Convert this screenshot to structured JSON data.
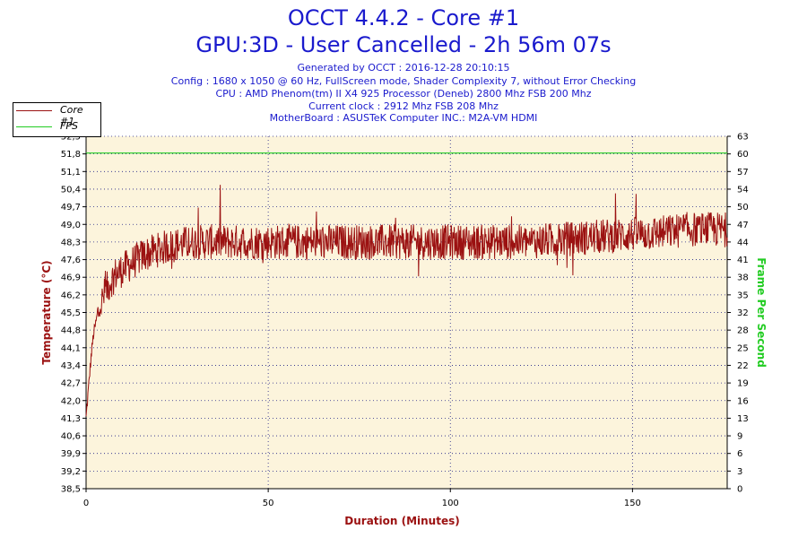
{
  "header": {
    "title": "OCCT 4.4.2 - Core #1",
    "subtitle": "GPU:3D - User Cancelled - 2h 56m 07s",
    "info": [
      "Generated by OCCT : 2016-12-28 20:10:15",
      "Config : 1680 x 1050 @ 60 Hz, FullScreen mode, Shader Complexity 7, without Error Checking",
      "CPU : AMD Phenom(tm) II X4 925 Processor (Deneb) 2800 Mhz FSB 200 Mhz",
      "Current clock : 2912 Mhz FSB 208 Mhz",
      "MotherBoard : ASUSTeK Computer INC.: M2A-VM HDMI"
    ]
  },
  "legend": [
    {
      "label": "Core #1",
      "color": "#9b1111"
    },
    {
      "label": "FPS",
      "color": "#22cc22"
    }
  ],
  "chart_data": {
    "type": "line",
    "title": "OCCT 4.4.2 - Core #1",
    "xlabel": "Duration (Minutes)",
    "ylabel": "Temperature (°C)",
    "y2label": "Frame Per Second",
    "xlim": [
      0,
      176
    ],
    "ylim": [
      38.5,
      52.5
    ],
    "y2lim": [
      0,
      63
    ],
    "x_ticks": [
      "0",
      "50",
      "100",
      "150"
    ],
    "y_ticks": [
      "38,5",
      "39,2",
      "39,9",
      "40,6",
      "41,3",
      "42,0",
      "42,7",
      "43,4",
      "44,1",
      "44,8",
      "45,5",
      "46,2",
      "46,9",
      "47,6",
      "48,3",
      "49,0",
      "49,7",
      "50,4",
      "51,1",
      "51,8",
      "52,5"
    ],
    "y2_ticks": [
      "0",
      "3",
      "6",
      "9",
      "13",
      "16",
      "19",
      "22",
      "25",
      "28",
      "32",
      "35",
      "38",
      "41",
      "44",
      "47",
      "50",
      "54",
      "57",
      "60",
      "63"
    ],
    "grid": true,
    "legend_position": "top-left",
    "series": [
      {
        "name": "Core #1",
        "color": "#9b1111",
        "axis": "left",
        "x": [
          0,
          0.5,
          1,
          1.5,
          2,
          3,
          4,
          5,
          6,
          7,
          8,
          10,
          12,
          14,
          16,
          18,
          20,
          22,
          25,
          30,
          35,
          40,
          45,
          50,
          55,
          60,
          70,
          80,
          90,
          100,
          110,
          120,
          130,
          140,
          150,
          160,
          165,
          170,
          176
        ],
        "values": [
          41.3,
          42.2,
          43.1,
          43.9,
          44.6,
          45.3,
          45.8,
          46.2,
          46.5,
          46.8,
          47.0,
          47.2,
          47.4,
          47.6,
          47.8,
          47.9,
          48.0,
          48.1,
          48.2,
          48.3,
          48.3,
          48.3,
          48.3,
          48.3,
          48.3,
          48.3,
          48.3,
          48.3,
          48.3,
          48.3,
          48.3,
          48.3,
          48.4,
          48.5,
          48.6,
          48.7,
          48.8,
          48.8,
          48.8
        ],
        "noise": 0.7
      },
      {
        "name": "FPS",
        "color": "#22cc22",
        "axis": "right",
        "x": [
          0,
          176
        ],
        "values": [
          60,
          60
        ]
      }
    ]
  },
  "colors": {
    "plot_bg": "#fcf4dc",
    "grid": "#222288",
    "title": "#1a1acd",
    "ylabel": "#9b1111",
    "y2label": "#22cc22",
    "xlabel": "#9b1111"
  }
}
